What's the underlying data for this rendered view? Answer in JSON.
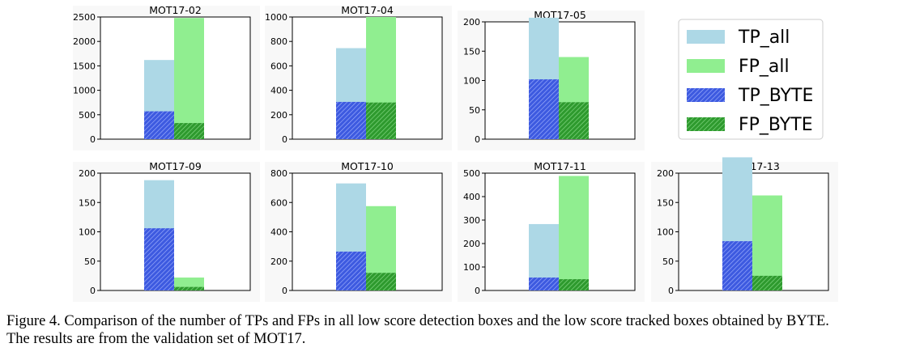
{
  "chart_data": {
    "type": "bar",
    "legend": {
      "position": "top-right",
      "entries": [
        {
          "key": "tp_all",
          "label": "TP_all",
          "color": "#add8e6",
          "hatch": false
        },
        {
          "key": "fp_all",
          "label": "FP_all",
          "color": "#90ee90",
          "hatch": false
        },
        {
          "key": "tp_byte",
          "label": "TP_BYTE",
          "color": "#3d5ae0",
          "hatch": true
        },
        {
          "key": "fp_byte",
          "label": "FP_BYTE",
          "color": "#2e9a2e",
          "hatch": true
        }
      ]
    },
    "panels": [
      {
        "title": "MOT17-02",
        "ylim": [
          0,
          2500
        ],
        "yticks": [
          0,
          500,
          1000,
          1500,
          2000,
          2500
        ],
        "tp_all": 1620,
        "fp_all": 2480,
        "tp_byte": 570,
        "fp_byte": 330
      },
      {
        "title": "MOT17-04",
        "ylim": [
          0,
          1000
        ],
        "yticks": [
          0,
          200,
          400,
          600,
          800,
          1000
        ],
        "tp_all": 745,
        "fp_all": 1000,
        "tp_byte": 305,
        "fp_byte": 300
      },
      {
        "title": "MOT17-05",
        "ylim": [
          0,
          200
        ],
        "yticks": [
          0,
          50,
          100,
          150,
          200
        ],
        "tp_all": 207,
        "fp_all": 140,
        "tp_byte": 102,
        "fp_byte": 63
      },
      {
        "title": "MOT17-09",
        "ylim": [
          0,
          200
        ],
        "yticks": [
          0,
          50,
          100,
          150,
          200
        ],
        "tp_all": 188,
        "fp_all": 22,
        "tp_byte": 106,
        "fp_byte": 6
      },
      {
        "title": "MOT17-10",
        "ylim": [
          0,
          800
        ],
        "yticks": [
          0,
          200,
          400,
          600,
          800
        ],
        "tp_all": 730,
        "fp_all": 575,
        "tp_byte": 265,
        "fp_byte": 120
      },
      {
        "title": "MOT17-11",
        "ylim": [
          0,
          500
        ],
        "yticks": [
          0,
          100,
          200,
          300,
          400,
          500
        ],
        "tp_all": 283,
        "fp_all": 488,
        "tp_byte": 55,
        "fp_byte": 48
      },
      {
        "title": "MOT17-13",
        "ylim": [
          0,
          200
        ],
        "yticks": [
          0,
          50,
          100,
          150,
          200
        ],
        "tp_all": 227,
        "fp_all": 162,
        "tp_byte": 84,
        "fp_byte": 25
      }
    ]
  },
  "caption": {
    "line1": "Figure 4. Comparison of the number of TPs and FPs in all low score detection boxes and the low score tracked boxes obtained by BYTE.",
    "line2": "The results are from the validation set of MOT17."
  }
}
